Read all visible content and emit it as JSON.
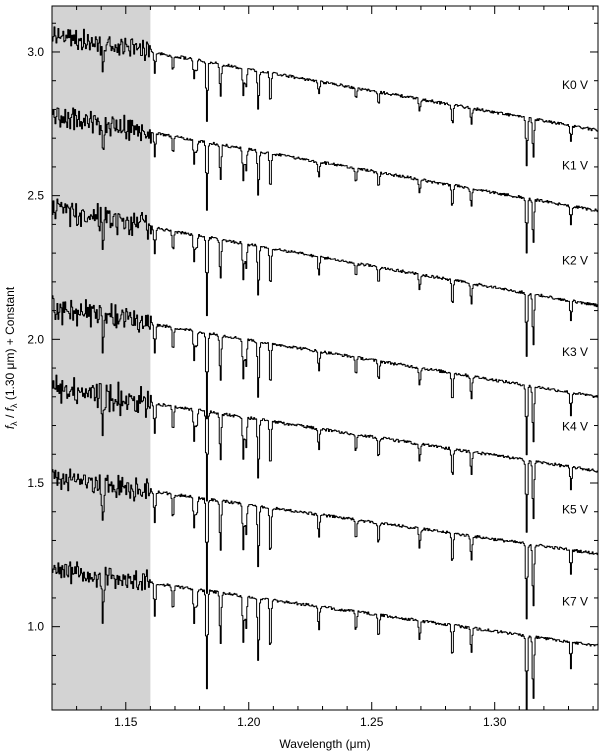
{
  "chart_data": {
    "type": "line",
    "title": "",
    "xlabel": "Wavelength (μm)",
    "ylabel": {
      "f1": "f",
      "sub1": "λ",
      "slash": " / ",
      "f2": "f",
      "sub2": "λ",
      "rest": " (1.30 μm) + Constant"
    },
    "xlim": [
      1.12,
      1.342
    ],
    "ylim": [
      0.71,
      3.16
    ],
    "xticks": [
      {
        "value": 1.15,
        "label": "1.15"
      },
      {
        "value": 1.2,
        "label": "1.20"
      },
      {
        "value": 1.25,
        "label": "1.25"
      },
      {
        "value": 1.3,
        "label": "1.30"
      }
    ],
    "yticks": [
      {
        "value": 1.0,
        "label": "1.0"
      },
      {
        "value": 1.5,
        "label": "1.5"
      },
      {
        "value": 2.0,
        "label": "2.0"
      },
      {
        "value": 2.5,
        "label": "2.5"
      },
      {
        "value": 3.0,
        "label": "3.0"
      }
    ],
    "shaded_region": {
      "x": [
        1.12,
        1.16
      ],
      "color": "#d3d3d3"
    },
    "line_color": "#000000",
    "absorption_lines": [
      {
        "x": 1.1405,
        "depth": 0.14
      },
      {
        "x": 1.1616,
        "depth": 0.1
      },
      {
        "x": 1.169,
        "depth": 0.08
      },
      {
        "x": 1.1776,
        "depth": 0.1
      },
      {
        "x": 1.1786,
        "depth": 0.06
      },
      {
        "x": 1.1828,
        "depth": 0.3
      },
      {
        "x": 1.1883,
        "depth": 0.16
      },
      {
        "x": 1.1976,
        "depth": 0.14
      },
      {
        "x": 1.1987,
        "depth": 0.1
      },
      {
        "x": 1.2037,
        "depth": 0.2
      },
      {
        "x": 1.2086,
        "depth": 0.16
      },
      {
        "x": 1.2283,
        "depth": 0.07
      },
      {
        "x": 1.2434,
        "depth": 0.06
      },
      {
        "x": 1.2526,
        "depth": 0.07
      },
      {
        "x": 1.2693,
        "depth": 0.06
      },
      {
        "x": 1.2826,
        "depth": 0.1
      },
      {
        "x": 1.2903,
        "depth": 0.08
      },
      {
        "x": 1.3128,
        "depth": 0.24
      },
      {
        "x": 1.3155,
        "depth": 0.2
      },
      {
        "x": 1.3308,
        "depth": 0.08
      }
    ],
    "series": [
      {
        "name": "K0 V",
        "offset": 3.06,
        "slope": 1.5,
        "strength": 0.7,
        "blue_noise": 0.03
      },
      {
        "name": "K1 V",
        "offset": 2.78,
        "slope": 1.5,
        "strength": 0.8,
        "blue_noise": 0.032
      },
      {
        "name": "K2 V",
        "offset": 2.45,
        "slope": 1.5,
        "strength": 0.9,
        "blue_noise": 0.035
      },
      {
        "name": "K3 V",
        "offset": 2.11,
        "slope": 1.4,
        "strength": 1.0,
        "blue_noise": 0.04
      },
      {
        "name": "K4 V",
        "offset": 1.83,
        "slope": 1.3,
        "strength": 1.05,
        "blue_noise": 0.04
      },
      {
        "name": "K5 V",
        "offset": 1.52,
        "slope": 1.2,
        "strength": 1.1,
        "blue_noise": 0.032
      },
      {
        "name": "K7 V",
        "offset": 1.2,
        "slope": 1.2,
        "strength": 1.15,
        "blue_noise": 0.03
      }
    ]
  }
}
